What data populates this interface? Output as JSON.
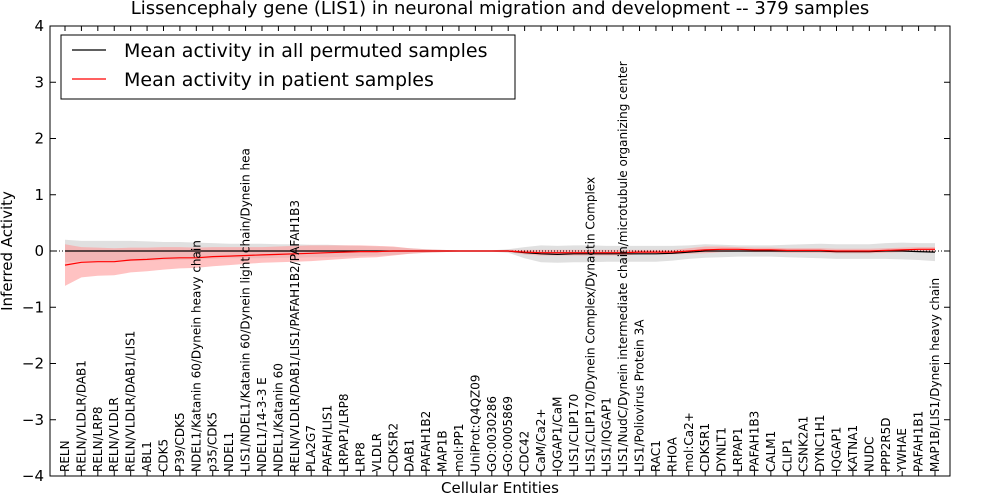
{
  "chart_data": {
    "type": "line",
    "title": "Lissencephaly gene (LIS1) in neuronal migration and development -- 379 samples",
    "xlabel": "Cellular Entities",
    "ylabel": "Inferred Activity",
    "ylim": [
      -4,
      4
    ],
    "yticks": [
      4,
      3,
      2,
      1,
      0,
      -1,
      -2,
      -3,
      -4
    ],
    "ytick_labels": [
      "4",
      "3",
      "2",
      "1",
      "0",
      "−1",
      "−2",
      "−3",
      "−4"
    ],
    "legend_position": "upper-left",
    "colors": {
      "permuted": "#000000",
      "patient": "#ff0000",
      "patient_band": "#ff9999",
      "permuted_band": "#cccccc"
    },
    "categories": [
      "RELN",
      "RELN/VLDLR/DAB1",
      "RELN/LRP8",
      "RELN/VLDLR",
      "RELN/VLDLR/DAB1/LIS1",
      "ABL1",
      "CDK5",
      "P39/CDK5",
      "NDEL1/Katanin 60/Dynein heavy chain",
      "p35/CDK5",
      "NDEL1",
      "LIS1/NDEL1/Katanin 60/Dynein light chain/Dynein hea",
      "NDEL1/14-3-3 E",
      "NDEL1/Katanin 60",
      "RELN/VLDLR/DAB1/LIS1/PAFAH1B2/PAFAH1B3",
      "PLA2G7",
      "PAFAH/LIS1",
      "LRPAP1/LRP8",
      "LRP8",
      "VLDLR",
      "CDK5R2",
      "DAB1",
      "PAFAH1B2",
      "MAP1B",
      "mol:PP1",
      "UniProt:Q4QZ09",
      "GO:0030286",
      "GO:0005869",
      "CDC42",
      "CaM/Ca2+",
      "IQGAP1/CaM",
      "LIS1/CLIP170",
      "LIS1/CLIP170/Dynein Complex/Dynactin Complex",
      "LIS1/IQGAP1",
      "LIS1/NudC/Dynein intermediate chain/microtubule organizing center",
      "LIS1/Poliovirus Protein 3A",
      "RAC1",
      "RHOA",
      "mol:Ca2+",
      "CDK5R1",
      "DYNLT1",
      "LRPAP1",
      "PAFAH1B3",
      "CALM1",
      "CLIP1",
      "CSNK2A1",
      "DYNC1H1",
      "IQGAP1",
      "KATNA1",
      "NUDC",
      "PPP2R5D",
      "YWHAE",
      "PAFAH1B1",
      "MAP1B/LIS1/Dynein heavy chain"
    ],
    "series": [
      {
        "name": "Mean activity in all permuted samples",
        "values": [
          0.0,
          0.0,
          0.0,
          0.0,
          0.0,
          0.0,
          0.0,
          0.0,
          0.0,
          0.0,
          0.0,
          0.0,
          0.0,
          0.0,
          0.0,
          0.0,
          0.0,
          0.0,
          0.0,
          0.0,
          0.0,
          0.0,
          0.0,
          0.0,
          0.0,
          0.0,
          0.0,
          0.0,
          -0.03,
          -0.05,
          -0.06,
          -0.05,
          -0.05,
          -0.05,
          -0.05,
          -0.05,
          -0.05,
          -0.04,
          -0.02,
          0.0,
          0.0,
          0.0,
          0.0,
          0.0,
          0.0,
          0.0,
          0.0,
          -0.01,
          -0.01,
          -0.01,
          0.0,
          0.0,
          -0.01,
          -0.02
        ],
        "band": [
          -0.2,
          -0.18,
          -0.18,
          -0.18,
          -0.18,
          -0.17,
          -0.16,
          -0.16,
          -0.15,
          -0.14,
          -0.13,
          -0.13,
          -0.13,
          -0.12,
          -0.12,
          -0.11,
          -0.11,
          -0.1,
          -0.09,
          -0.08,
          -0.07,
          -0.05,
          -0.03,
          -0.02,
          -0.01,
          -0.01,
          -0.01,
          -0.03,
          -0.1,
          -0.15,
          -0.15,
          -0.15,
          -0.15,
          -0.14,
          -0.14,
          -0.14,
          -0.14,
          -0.13,
          -0.12,
          -0.12,
          -0.11,
          -0.1,
          -0.1,
          -0.1,
          -0.11,
          -0.12,
          -0.13,
          -0.13,
          -0.13,
          -0.13,
          -0.14,
          -0.15,
          -0.15,
          -0.16
        ]
      },
      {
        "name": "Mean activity in patient samples",
        "values": [
          -0.25,
          -0.2,
          -0.19,
          -0.19,
          -0.16,
          -0.15,
          -0.13,
          -0.12,
          -0.12,
          -0.1,
          -0.09,
          -0.08,
          -0.07,
          -0.06,
          -0.05,
          -0.04,
          -0.03,
          -0.02,
          -0.01,
          -0.01,
          0.0,
          0.0,
          0.0,
          0.0,
          0.0,
          0.0,
          0.0,
          0.0,
          -0.02,
          -0.03,
          -0.03,
          -0.03,
          -0.03,
          -0.03,
          -0.03,
          -0.02,
          -0.02,
          -0.02,
          0.0,
          0.02,
          0.03,
          0.03,
          0.02,
          0.02,
          0.01,
          0.01,
          0.01,
          0.0,
          0.0,
          0.0,
          0.01,
          0.02,
          0.03,
          0.03
        ],
        "band": [
          -0.37,
          -0.27,
          -0.25,
          -0.24,
          -0.22,
          -0.21,
          -0.2,
          -0.19,
          -0.18,
          -0.17,
          -0.16,
          -0.15,
          -0.14,
          -0.14,
          -0.14,
          -0.14,
          -0.13,
          -0.12,
          -0.11,
          -0.1,
          -0.08,
          -0.05,
          -0.03,
          -0.02,
          -0.01,
          -0.01,
          -0.01,
          -0.02,
          -0.04,
          -0.05,
          -0.05,
          -0.05,
          -0.05,
          -0.05,
          -0.05,
          -0.04,
          -0.04,
          -0.04,
          -0.05,
          -0.06,
          -0.05,
          -0.04,
          -0.04,
          -0.04,
          -0.04,
          -0.04,
          -0.04,
          -0.04,
          -0.04,
          -0.04,
          -0.04,
          -0.04,
          -0.04,
          -0.04
        ]
      }
    ]
  }
}
